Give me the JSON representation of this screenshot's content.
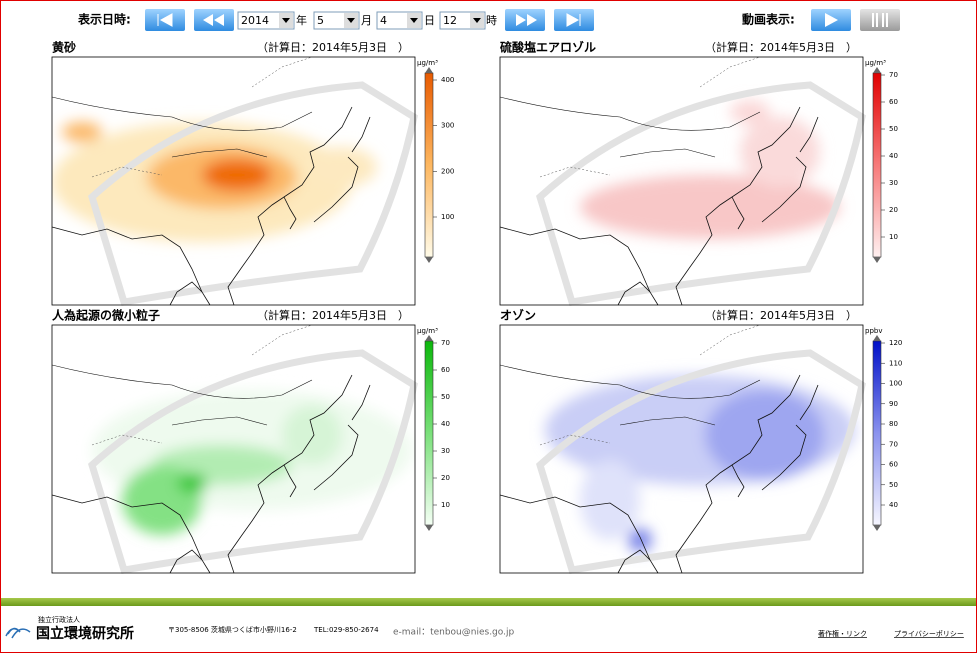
{
  "header": {
    "date_label": "表示日時:",
    "year": "2014",
    "year_unit": "年",
    "month": "5",
    "month_unit": "月",
    "day": "4",
    "day_unit": "日",
    "hour": "12",
    "hour_unit": "時",
    "animation_label": "動画表示:"
  },
  "panels": [
    {
      "title": "黄砂",
      "calc_date": "（計算日：2014年5月3日　）",
      "unit": "μg/m³",
      "ticks": [
        400,
        300,
        200,
        100
      ]
    },
    {
      "title": "硫酸塩エアロゾル",
      "calc_date": "（計算日：2014年5月3日　）",
      "unit": "μg/m³",
      "ticks": [
        70,
        60,
        50,
        40,
        30,
        20,
        10
      ]
    },
    {
      "title": "人為起源の微小粒子",
      "calc_date": "（計算日：2014年5月3日　）",
      "unit": "μg/m³",
      "ticks": [
        70,
        60,
        50,
        40,
        30,
        20,
        10
      ]
    },
    {
      "title": "オゾン",
      "calc_date": "（計算日：2014年5月3日　）",
      "unit": "ppbv",
      "ticks": [
        120,
        110,
        100,
        90,
        80,
        70,
        60,
        50,
        40
      ]
    }
  ],
  "footer": {
    "org_type": "独立行政法人",
    "org_name": "国立環境研究所",
    "address": "〒305-8506 茨城県つくば市小野川16-2",
    "tel": "TEL:029-850-2674",
    "email": "e-mail：tenbou@nies.go.jp",
    "copyright_link": "著作権・リンク",
    "privacy_link": "プライバシーポリシー"
  }
}
